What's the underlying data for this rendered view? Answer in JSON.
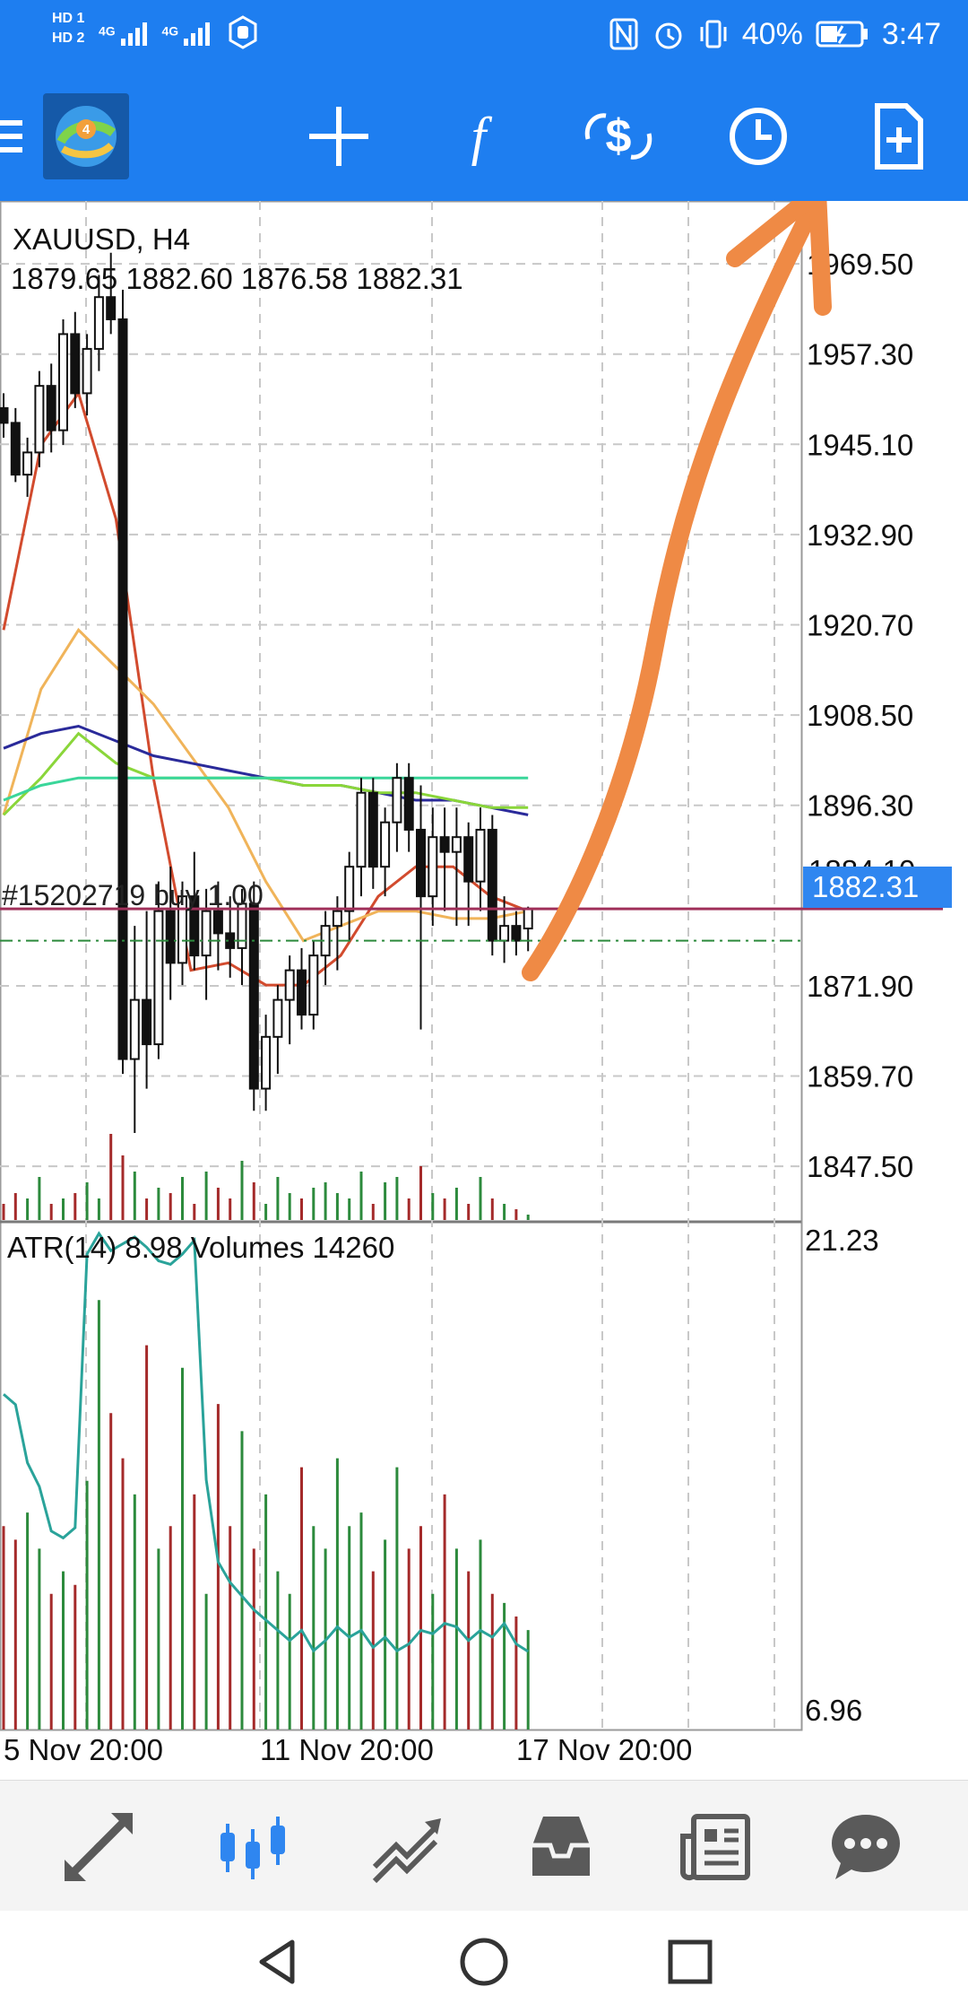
{
  "status_bar": {
    "sim1": "HD 1",
    "sim2": "HD 2",
    "net1": "4G",
    "net2": "4G",
    "battery": "40%",
    "time": "3:47"
  },
  "toolbar": {
    "icons": [
      "menu-icon",
      "app-logo",
      "crosshair-icon",
      "indicators-icon",
      "trade-icon",
      "timeframe-icon",
      "new-order-icon"
    ]
  },
  "chart": {
    "symbol_line": "XAUUSD, H4",
    "ohlc_line": "1879.65 1882.60 1876.58 1882.31",
    "order_label": "#15202719 buy 1.00",
    "bid_label": "1882.31",
    "partial_price_label": "1884.10",
    "indicator_line": "ATR(14) 8.98 Volumes 14260",
    "indicator_scale_top": "21.23",
    "indicator_scale_bottom": "6.96",
    "date_labels": [
      "5 Nov 20:00",
      "11 Nov 20:00",
      "17 Nov 20:00"
    ]
  },
  "chart_data": {
    "type": "candlestick",
    "symbol": "XAUUSD",
    "timeframe": "H4",
    "price_ticks": [
      1969.5,
      1957.3,
      1945.1,
      1932.9,
      1920.7,
      1908.5,
      1896.3,
      1871.9,
      1859.7,
      1847.5
    ],
    "ylim": [
      1840,
      1978
    ],
    "last_price": 1882.31,
    "order_price": 1878.0,
    "candles": [
      [
        1950,
        1952,
        1946,
        1948
      ],
      [
        1948,
        1950,
        1940,
        1941
      ],
      [
        1941,
        1946,
        1938,
        1944
      ],
      [
        1944,
        1955,
        1942,
        1953
      ],
      [
        1953,
        1956,
        1944,
        1947
      ],
      [
        1947,
        1962,
        1945,
        1960
      ],
      [
        1960,
        1963,
        1950,
        1952
      ],
      [
        1952,
        1960,
        1949,
        1958
      ],
      [
        1958,
        1968,
        1955,
        1965
      ],
      [
        1965,
        1971,
        1960,
        1962
      ],
      [
        1962,
        1966,
        1860,
        1862
      ],
      [
        1862,
        1880,
        1852,
        1870
      ],
      [
        1870,
        1882,
        1858,
        1864
      ],
      [
        1864,
        1886,
        1862,
        1882
      ],
      [
        1882,
        1888,
        1870,
        1875
      ],
      [
        1875,
        1886,
        1872,
        1884
      ],
      [
        1884,
        1890,
        1874,
        1876
      ],
      [
        1876,
        1885,
        1870,
        1882
      ],
      [
        1882,
        1886,
        1874,
        1879
      ],
      [
        1879,
        1884,
        1873,
        1877
      ],
      [
        1877,
        1885,
        1872,
        1883
      ],
      [
        1883,
        1886,
        1855,
        1858
      ],
      [
        1858,
        1868,
        1855,
        1865
      ],
      [
        1865,
        1872,
        1860,
        1870
      ],
      [
        1870,
        1876,
        1864,
        1874
      ],
      [
        1874,
        1877,
        1866,
        1868
      ],
      [
        1868,
        1878,
        1866,
        1876
      ],
      [
        1876,
        1882,
        1872,
        1880
      ],
      [
        1880,
        1884,
        1874,
        1882
      ],
      [
        1882,
        1890,
        1878,
        1888
      ],
      [
        1888,
        1900,
        1884,
        1898
      ],
      [
        1898,
        1900,
        1885,
        1888
      ],
      [
        1888,
        1896,
        1884,
        1894
      ],
      [
        1894,
        1902,
        1890,
        1900
      ],
      [
        1900,
        1902,
        1890,
        1893
      ],
      [
        1893,
        1899,
        1866,
        1884
      ],
      [
        1884,
        1896,
        1880,
        1892
      ],
      [
        1892,
        1896,
        1882,
        1890
      ],
      [
        1890,
        1896,
        1880,
        1892
      ],
      [
        1892,
        1894,
        1880,
        1886
      ],
      [
        1886,
        1896,
        1882,
        1893
      ],
      [
        1893,
        1895,
        1876,
        1878
      ],
      [
        1878,
        1884,
        1875,
        1880
      ],
      [
        1880,
        1882,
        1876,
        1878
      ],
      [
        1879.65,
        1882.6,
        1876.58,
        1882.31
      ]
    ],
    "moving_averages": [
      {
        "color": "#d24b2e",
        "values": [
          1920,
          1945,
          1952,
          1935,
          1900,
          1874,
          1875,
          1872,
          1872,
          1876,
          1884,
          1888,
          1888,
          1884,
          1882
        ]
      },
      {
        "color": "#f0b45a",
        "values": [
          1895,
          1912,
          1920,
          1915,
          1910,
          1903,
          1896,
          1886,
          1878,
          1880,
          1882,
          1882,
          1881,
          1881,
          1882
        ]
      },
      {
        "color": "#2a2a9a",
        "values": [
          1904,
          1906,
          1907,
          1905,
          1903,
          1902,
          1901,
          1900,
          1899,
          1899,
          1898,
          1897,
          1897,
          1896,
          1895
        ]
      },
      {
        "color": "#8ad63a",
        "values": [
          1895,
          1900,
          1906,
          1902,
          1900,
          1900,
          1900,
          1900,
          1899,
          1899,
          1898,
          1898,
          1897,
          1896,
          1896
        ]
      },
      {
        "color": "#3ad69a",
        "values": [
          1897,
          1899,
          1900,
          1900,
          1900,
          1900,
          1900,
          1900,
          1900,
          1900,
          1900,
          1900,
          1900,
          1900,
          1900
        ]
      }
    ],
    "volume_heights": [
      3,
      5,
      4,
      8,
      3,
      4,
      5,
      7,
      4,
      16,
      12,
      9,
      4,
      6,
      5,
      8,
      3,
      9,
      6,
      4,
      11,
      7,
      3,
      8,
      5,
      4,
      6,
      7,
      5,
      4,
      9,
      3,
      7,
      8,
      4,
      10,
      5,
      4,
      6,
      3,
      8,
      4,
      3,
      2,
      1
    ],
    "atr": {
      "ylim": [
        6.96,
        21.23
      ],
      "values": [
        16.5,
        16.2,
        14.5,
        13.8,
        12.5,
        12.3,
        12.6,
        20.6,
        21.2,
        20.7,
        20.9,
        21.1,
        20.8,
        20.4,
        20.3,
        20.6,
        21.0,
        14.0,
        11.6,
        11.0,
        10.6,
        10.2,
        9.9,
        9.6,
        9.3,
        9.6,
        9.0,
        9.3,
        9.7,
        9.4,
        9.6,
        9.1,
        9.4,
        9.0,
        9.2,
        9.6,
        9.5,
        9.8,
        9.7,
        9.3,
        9.6,
        9.4,
        9.8,
        9.2,
        8.98
      ]
    },
    "atr_volume_heights": [
      0.45,
      0.42,
      0.48,
      0.4,
      0.3,
      0.35,
      0.32,
      0.55,
      0.95,
      0.7,
      0.6,
      0.52,
      0.85,
      0.4,
      0.45,
      0.8,
      0.52,
      0.3,
      0.72,
      0.45,
      0.66,
      0.4,
      0.52,
      0.35,
      0.3,
      0.58,
      0.45,
      0.4,
      0.6,
      0.45,
      0.48,
      0.35,
      0.42,
      0.58,
      0.4,
      0.45,
      0.3,
      0.52,
      0.4,
      0.35,
      0.42,
      0.3,
      0.28,
      0.25,
      0.22
    ],
    "date_ticks": [
      "5 Nov 20:00",
      "11 Nov 20:00",
      "17 Nov 20:00"
    ]
  },
  "bottom_nav": {
    "items": [
      "quotes-icon",
      "chart-icon",
      "trade-icon",
      "history-icon",
      "news-icon",
      "messages-icon"
    ],
    "active": "chart-icon",
    "active_color": "#2f86f0",
    "inactive_color": "#5a5a5a"
  },
  "colors": {
    "primary_blue": "#1e7ef0",
    "annotation_orange": "#ef8a45",
    "bid_box": "#2f86f0",
    "bullish_volume": "#2c8a3c",
    "bearish_volume": "#a42a2a",
    "atr_line": "#2aa39a"
  }
}
